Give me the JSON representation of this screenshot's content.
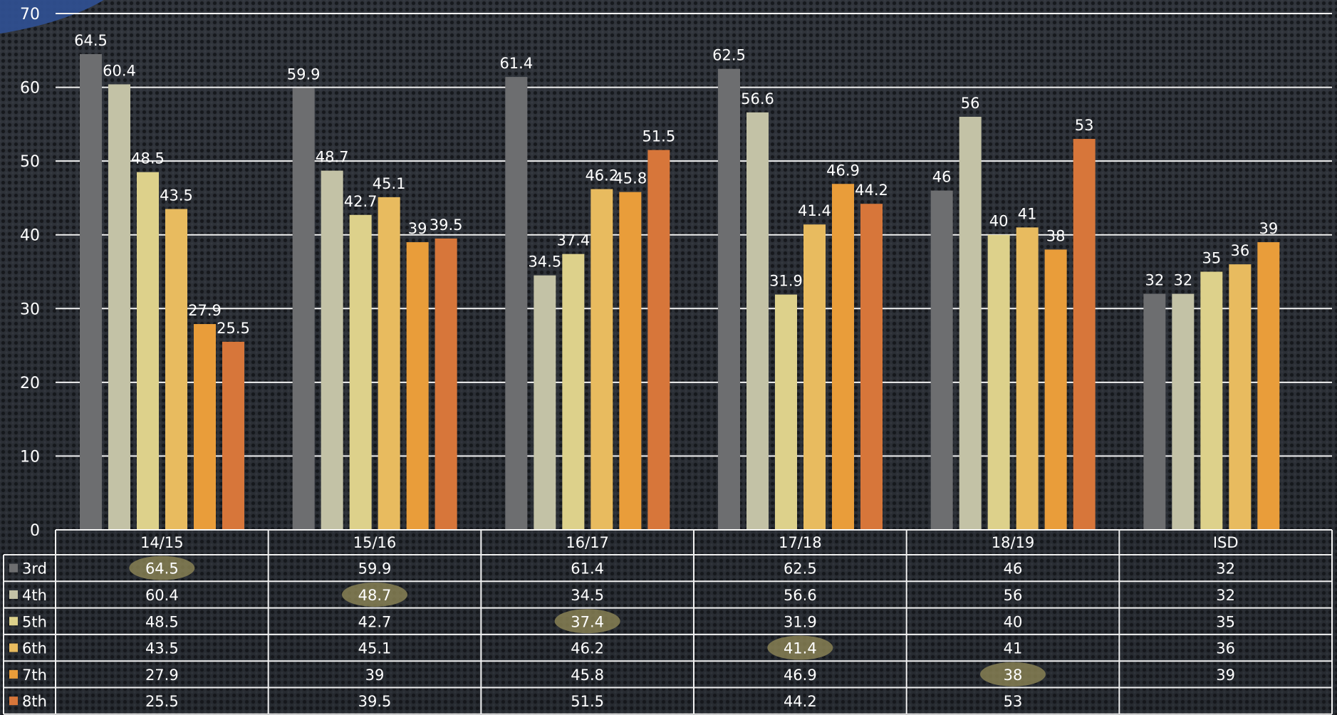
{
  "chart_data": {
    "type": "bar",
    "categories": [
      "14/15",
      "15/16",
      "16/17",
      "17/18",
      "18/19",
      "ISD"
    ],
    "series": [
      {
        "name": "3rd",
        "values": [
          64.5,
          59.9,
          61.4,
          62.5,
          46,
          32
        ]
      },
      {
        "name": "4th",
        "values": [
          60.4,
          48.7,
          34.5,
          56.6,
          56,
          32
        ]
      },
      {
        "name": "5th",
        "values": [
          48.5,
          42.7,
          37.4,
          31.9,
          40,
          35
        ]
      },
      {
        "name": "6th",
        "values": [
          43.5,
          45.1,
          46.2,
          41.4,
          41,
          36
        ]
      },
      {
        "name": "7th",
        "values": [
          27.9,
          39,
          45.8,
          46.9,
          38,
          39
        ]
      },
      {
        "name": "8th",
        "values": [
          25.5,
          39.5,
          51.5,
          44.2,
          53,
          null
        ]
      }
    ],
    "colors": [
      "#6d6e70",
      "#c3c2a6",
      "#ddd18b",
      "#e8bb5f",
      "#e99d3a",
      "#d7763a"
    ],
    "yticks": [
      "0",
      "10",
      "20",
      "30",
      "40",
      "50",
      "60",
      "70"
    ],
    "ylim": [
      0,
      70
    ],
    "grid": true,
    "legend": "data table below chart",
    "highlighted_cells": [
      {
        "series": 0,
        "category": 0
      },
      {
        "series": 1,
        "category": 1
      },
      {
        "series": 2,
        "category": 2
      },
      {
        "series": 3,
        "category": 3
      },
      {
        "series": 4,
        "category": 4
      }
    ],
    "title": "",
    "xlabel": "",
    "ylabel": ""
  }
}
